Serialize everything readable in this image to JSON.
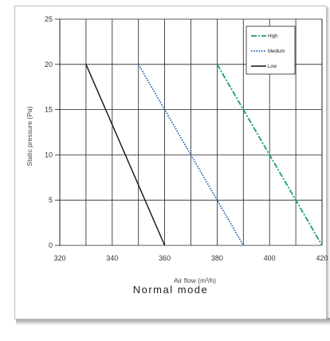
{
  "chart_data": {
    "type": "line",
    "xlabel": "Air flow  (m³/h)",
    "ylabel": "Static pressure (Pa)",
    "xlim": [
      320,
      420
    ],
    "ylim": [
      0,
      25
    ],
    "x_ticks": [
      "320",
      "340",
      "360",
      "380",
      "400",
      "420"
    ],
    "y_ticks": [
      "0",
      "5",
      "10",
      "15",
      "20",
      "25"
    ],
    "grid": true,
    "legend_position": "top-right",
    "series": [
      {
        "name": "High",
        "color": "#1a9a7a",
        "style": "dash-dot",
        "points": [
          [
            380,
            20
          ],
          [
            420,
            0
          ]
        ]
      },
      {
        "name": "Medium",
        "color": "#2a6ab8",
        "style": "dotted",
        "points": [
          [
            350,
            20
          ],
          [
            390,
            0
          ]
        ]
      },
      {
        "name": "Low",
        "color": "#111111",
        "style": "solid",
        "points": [
          [
            330,
            20
          ],
          [
            360,
            0
          ]
        ]
      }
    ]
  },
  "caption": "Normal mode"
}
